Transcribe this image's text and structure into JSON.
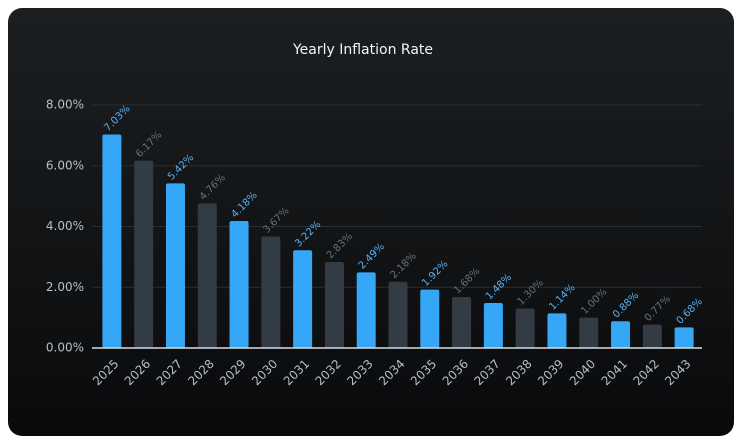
{
  "chart_data": {
    "type": "bar",
    "title": "Yearly Inflation Rate",
    "categories": [
      "2025",
      "2026",
      "2027",
      "2028",
      "2029",
      "2030",
      "2031",
      "2032",
      "2033",
      "2034",
      "2035",
      "2036",
      "2037",
      "2038",
      "2039",
      "2040",
      "2041",
      "2042",
      "2043"
    ],
    "values": [
      7.03,
      6.17,
      5.42,
      4.76,
      4.18,
      3.67,
      3.22,
      2.83,
      2.49,
      2.18,
      1.92,
      1.68,
      1.48,
      1.3,
      1.14,
      1.0,
      0.88,
      0.77,
      0.68
    ],
    "value_labels": [
      "7.03%",
      "6.17%",
      "5.42%",
      "4.76%",
      "4.18%",
      "3.67%",
      "3.22%",
      "2.83%",
      "2.49%",
      "2.18%",
      "1.92%",
      "1.68%",
      "1.48%",
      "1.30%",
      "1.14%",
      "1.00%",
      "0.88%",
      "0.77%",
      "0.68%"
    ],
    "colors": [
      "#36a6f7",
      "#333c44",
      "#36a6f7",
      "#333c44",
      "#36a6f7",
      "#333c44",
      "#36a6f7",
      "#333c44",
      "#36a6f7",
      "#333c44",
      "#36a6f7",
      "#333c44",
      "#36a6f7",
      "#333c44",
      "#36a6f7",
      "#333c44",
      "#36a6f7",
      "#333c44",
      "#36a6f7"
    ],
    "ylim": [
      0,
      8
    ],
    "yticks": [
      {
        "value": 0,
        "label": "0.00%"
      },
      {
        "value": 2,
        "label": "2.00%"
      },
      {
        "value": 4,
        "label": "4.00%"
      },
      {
        "value": 6,
        "label": "6.00%"
      },
      {
        "value": 8,
        "label": "8.00%"
      }
    ],
    "grid": true
  }
}
